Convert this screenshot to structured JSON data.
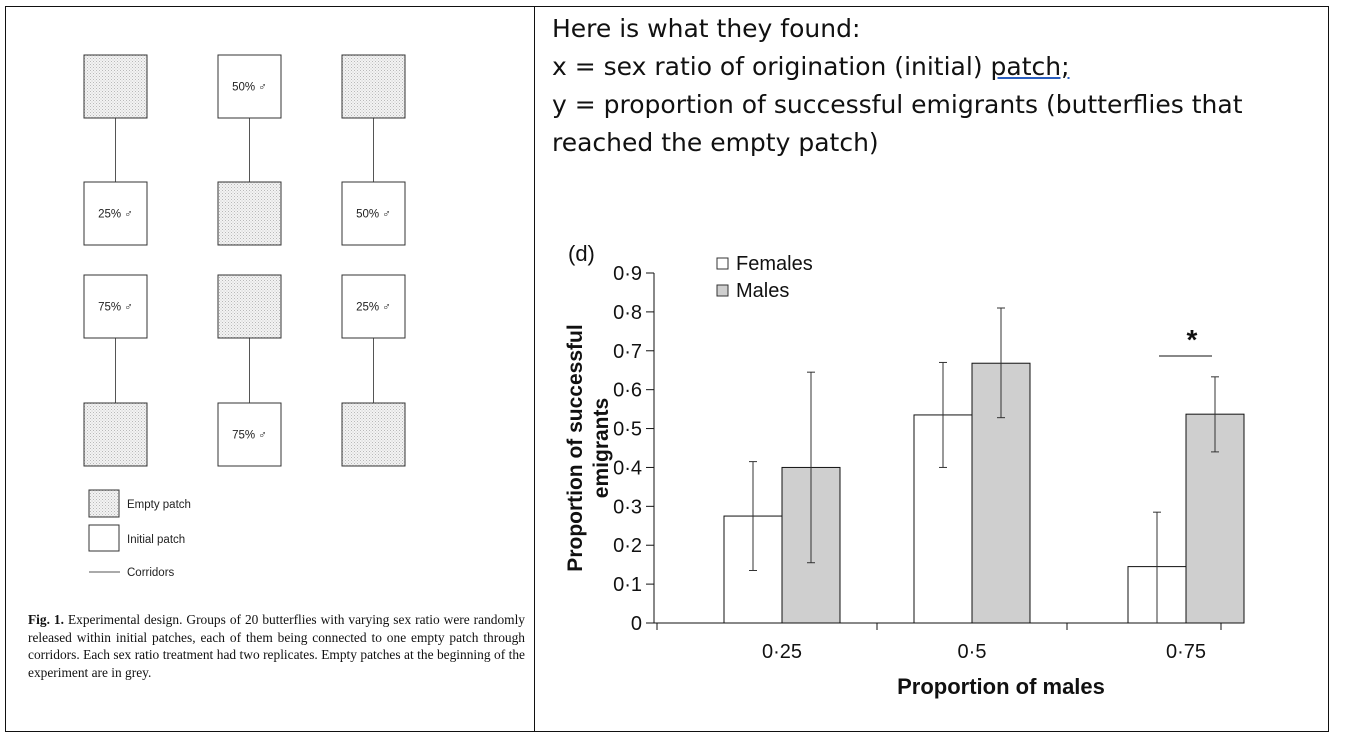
{
  "left_panel": {
    "patches": [
      {
        "type": "empty",
        "label": ""
      },
      {
        "type": "initial",
        "label": "50% ♂"
      },
      {
        "type": "empty",
        "label": ""
      },
      {
        "type": "initial",
        "label": "25% ♂"
      },
      {
        "type": "empty",
        "label": ""
      },
      {
        "type": "initial",
        "label": "50% ♂"
      },
      {
        "type": "initial",
        "label": "75% ♂"
      },
      {
        "type": "empty",
        "label": ""
      },
      {
        "type": "initial",
        "label": "25% ♂"
      },
      {
        "type": "empty",
        "label": ""
      },
      {
        "type": "initial",
        "label": "75% ♂"
      },
      {
        "type": "empty",
        "label": ""
      }
    ],
    "legend": {
      "empty": "Empty patch",
      "initial": "Initial patch",
      "corridors": "Corridors"
    },
    "caption": {
      "prefix": "Fig. 1.",
      "text": "Experimental design. Groups of 20 butterflies with varying sex ratio were randomly released within initial patches, each of them being connected to one empty patch through corridors. Each sex ratio treatment had two replicates. Empty patches at the beginning of the experiment are in grey."
    }
  },
  "right_panel": {
    "lines": [
      "Here is what they found:",
      "x = sex ratio of origination (initial) ",
      "patch;",
      "y = proportion of successful emigrants (butterflies that",
      "reached the empty patch)"
    ]
  },
  "chart_data": {
    "type": "bar",
    "panel_label": "(d)",
    "categories": [
      "0·25",
      "0·5",
      "0·75"
    ],
    "series": [
      {
        "name": "Females",
        "values": [
          0.275,
          0.535,
          0.145
        ],
        "error_low": [
          0.135,
          0.4,
          0.0
        ],
        "error_high": [
          0.415,
          0.67,
          0.285
        ]
      },
      {
        "name": "Males",
        "values": [
          0.4,
          0.668,
          0.537
        ],
        "error_low": [
          0.155,
          0.528,
          0.44
        ],
        "error_high": [
          0.645,
          0.81,
          0.633
        ]
      }
    ],
    "colors": {
      "Females": "#ffffff",
      "Males": "#cfcfcf"
    },
    "xlabel": "Proportion of males",
    "ylabel_lines": [
      "Proportion of successful",
      "emigrants"
    ],
    "ylim": [
      0,
      0.9
    ],
    "yticks": [
      0,
      0.1,
      0.2,
      0.3,
      0.4,
      0.5,
      0.6,
      0.7,
      0.8,
      0.9
    ],
    "ytick_labels": [
      "0",
      "0·1",
      "0·2",
      "0·3",
      "0·4",
      "0·5",
      "0·6",
      "0·7",
      "0·8",
      "0·9"
    ],
    "legend_position": "top-left",
    "grid": false,
    "annotations": [
      {
        "text": "*",
        "category": "0·75"
      }
    ]
  }
}
